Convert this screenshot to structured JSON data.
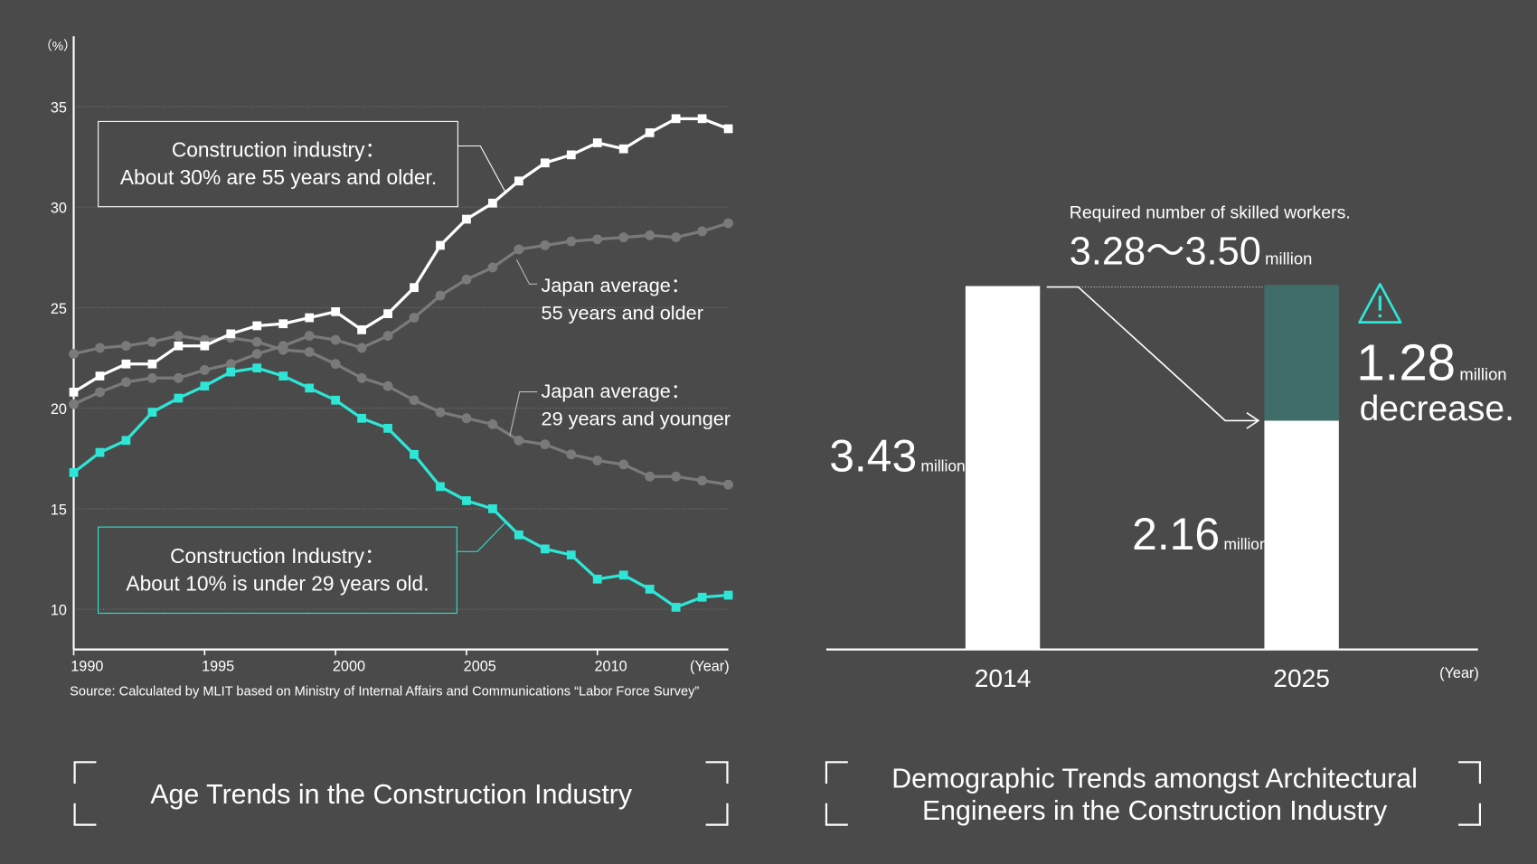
{
  "chart_data": [
    {
      "type": "line",
      "y_label": "（%）",
      "x_label": "(Year)",
      "xlim": [
        1990,
        2015
      ],
      "xticks": [
        1990,
        1995,
        2000,
        2005,
        2010
      ],
      "ylim": [
        8,
        38.5
      ],
      "yticks": [
        10,
        15,
        20,
        25,
        30,
        35
      ],
      "grid": true,
      "x": [
        1990,
        1991,
        1992,
        1993,
        1994,
        1995,
        1996,
        1997,
        1998,
        1999,
        2000,
        2001,
        2002,
        2003,
        2004,
        2005,
        2006,
        2007,
        2008,
        2009,
        2010,
        2011,
        2012,
        2013,
        2014,
        2015
      ],
      "series": [
        {
          "label_lines": [
            "Japan average：",
            "55 years and older"
          ],
          "color": "#7a7a7a",
          "marker": "circle",
          "values": [
            20.2,
            20.8,
            21.3,
            21.5,
            21.5,
            21.9,
            22.2,
            22.7,
            23.1,
            23.6,
            23.4,
            23.0,
            23.6,
            24.5,
            25.6,
            26.4,
            27.0,
            27.9,
            28.1,
            28.3,
            28.4,
            28.5,
            28.6,
            28.5,
            28.8,
            29.2
          ]
        },
        {
          "label_lines": [
            "Japan average：",
            "29 years and younger"
          ],
          "color": "#7a7a7a",
          "marker": "circle",
          "values": [
            22.7,
            23.0,
            23.1,
            23.3,
            23.6,
            23.4,
            23.5,
            23.3,
            22.9,
            22.8,
            22.2,
            21.5,
            21.1,
            20.4,
            19.8,
            19.5,
            19.2,
            18.4,
            18.2,
            17.7,
            17.4,
            17.2,
            16.6,
            16.6,
            16.4,
            16.2
          ]
        },
        {
          "label_lines": [
            "Construction industry：",
            "About 30% are 55 years and older."
          ],
          "color": "#ffffff",
          "marker": "square",
          "values": [
            20.8,
            21.6,
            22.2,
            22.2,
            23.1,
            23.1,
            23.7,
            24.1,
            24.2,
            24.5,
            24.8,
            23.9,
            24.7,
            26.0,
            28.1,
            29.4,
            30.2,
            31.3,
            32.2,
            32.6,
            33.2,
            32.9,
            33.7,
            34.4,
            34.4,
            33.9
          ]
        },
        {
          "label_lines": [
            "Construction Industry：",
            "About 10% is under 29 years old."
          ],
          "color": "#2ee6d6",
          "marker": "square",
          "values": [
            16.8,
            17.8,
            18.4,
            19.8,
            20.5,
            21.1,
            21.8,
            22.0,
            21.6,
            21.0,
            20.4,
            19.5,
            19.0,
            17.7,
            16.1,
            15.4,
            15.0,
            13.7,
            13.0,
            12.7,
            11.5,
            11.7,
            11.0,
            10.1,
            10.6,
            10.7
          ]
        }
      ],
      "source": "Source: Calculated by MLIT based on Ministry of Internal Affairs and Communications “Labor Force Survey”",
      "title": "Age Trends in the Construction Industry"
    },
    {
      "type": "bar",
      "categories": [
        "2014",
        "2025"
      ],
      "values": [
        3.43,
        2.16
      ],
      "value_labels": [
        "3.43",
        "2.16"
      ],
      "unit": "million",
      "color": "#ffffff",
      "x_label": "(Year)",
      "required_label": "Required number of skilled workers.",
      "range_label": "3.28～3.50",
      "decrease": {
        "value": 1.28,
        "label": "1.28",
        "text": "decrease.",
        "color": "#3f6e6a",
        "text_color": "#2ee6d6"
      },
      "title_lines": [
        "Demographic Trends amongst Architectural",
        "Engineers in the Construction Industry"
      ]
    }
  ]
}
